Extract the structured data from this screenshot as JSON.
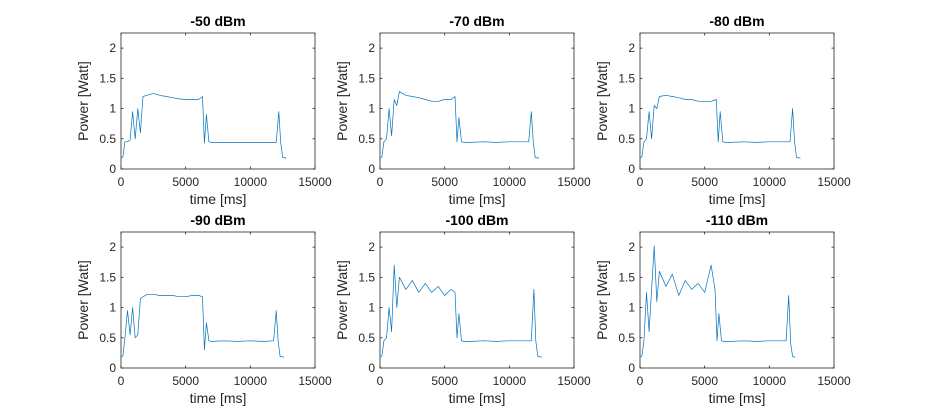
{
  "colors": {
    "line": "#0072BD",
    "axis": "#262626"
  },
  "chart_data": [
    {
      "type": "line",
      "title": "-50 dBm",
      "xlabel": "time [ms]",
      "ylabel": "Power [Watt]",
      "xlim": [
        0,
        15000
      ],
      "ylim": [
        0,
        2.25
      ],
      "xticks": [
        0,
        5000,
        10000,
        15000
      ],
      "xticklabels": [
        "0",
        "5000",
        "10000",
        "15000"
      ],
      "yticks": [
        0,
        0.5,
        1,
        1.5,
        2
      ],
      "yticklabels": [
        "0",
        "0.5",
        "1",
        "1.5",
        "2"
      ],
      "grid": false,
      "x": [
        0,
        150,
        300,
        500,
        700,
        900,
        1100,
        1300,
        1500,
        1700,
        2000,
        2500,
        3000,
        3500,
        4000,
        4500,
        5000,
        5500,
        6000,
        6300,
        6450,
        6600,
        6800,
        7000,
        8000,
        9000,
        10000,
        11000,
        12000,
        12200,
        12350,
        12500,
        12800
      ],
      "y": [
        0.18,
        0.2,
        0.45,
        0.45,
        0.48,
        0.95,
        0.5,
        1.0,
        0.6,
        1.2,
        1.22,
        1.25,
        1.22,
        1.2,
        1.18,
        1.16,
        1.15,
        1.15,
        1.15,
        1.2,
        0.43,
        0.9,
        0.45,
        0.44,
        0.44,
        0.44,
        0.44,
        0.44,
        0.44,
        0.95,
        0.44,
        0.19,
        0.18
      ]
    },
    {
      "type": "line",
      "title": "-70 dBm",
      "xlabel": "time [ms]",
      "ylabel": "Power [Watt]",
      "xlim": [
        0,
        15000
      ],
      "ylim": [
        0,
        2.25
      ],
      "xticks": [
        0,
        5000,
        10000,
        15000
      ],
      "xticklabels": [
        "0",
        "5000",
        "10000",
        "15000"
      ],
      "yticks": [
        0,
        0.5,
        1,
        1.5,
        2
      ],
      "yticklabels": [
        "0",
        "0.5",
        "1",
        "1.5",
        "2"
      ],
      "grid": false,
      "x": [
        0,
        150,
        300,
        500,
        700,
        900,
        1100,
        1300,
        1500,
        2000,
        2500,
        3000,
        3500,
        4000,
        4500,
        5000,
        5500,
        5800,
        5950,
        6100,
        6300,
        6500,
        7000,
        8000,
        9000,
        10000,
        11000,
        11500,
        11700,
        11850,
        12000,
        12300
      ],
      "y": [
        0.18,
        0.2,
        0.45,
        0.5,
        1.0,
        0.55,
        1.15,
        1.05,
        1.28,
        1.22,
        1.2,
        1.18,
        1.15,
        1.12,
        1.12,
        1.15,
        1.15,
        1.2,
        0.45,
        0.85,
        0.45,
        0.44,
        0.44,
        0.45,
        0.44,
        0.45,
        0.45,
        0.45,
        0.95,
        0.44,
        0.19,
        0.18
      ]
    },
    {
      "type": "line",
      "title": "-80 dBm",
      "xlabel": "time [ms]",
      "ylabel": "Power [Watt]",
      "xlim": [
        0,
        15000
      ],
      "ylim": [
        0,
        2.25
      ],
      "xticks": [
        0,
        5000,
        10000,
        15000
      ],
      "xticklabels": [
        "0",
        "5000",
        "10000",
        "15000"
      ],
      "yticks": [
        0,
        0.5,
        1,
        1.5,
        2
      ],
      "yticklabels": [
        "0",
        "0.5",
        "1",
        "1.5",
        "2"
      ],
      "grid": false,
      "x": [
        0,
        150,
        300,
        500,
        700,
        900,
        1100,
        1300,
        1500,
        2000,
        2500,
        3000,
        3500,
        4000,
        4500,
        5000,
        5500,
        5900,
        6050,
        6200,
        6400,
        6600,
        7000,
        8000,
        9000,
        10000,
        11000,
        11600,
        11800,
        11950,
        12100,
        12400
      ],
      "y": [
        0.18,
        0.2,
        0.45,
        0.5,
        0.95,
        0.5,
        1.05,
        1.0,
        1.2,
        1.22,
        1.2,
        1.18,
        1.15,
        1.15,
        1.12,
        1.12,
        1.12,
        1.15,
        0.45,
        0.95,
        0.45,
        0.44,
        0.44,
        0.45,
        0.44,
        0.45,
        0.45,
        0.45,
        1.0,
        0.45,
        0.19,
        0.18
      ]
    },
    {
      "type": "line",
      "title": "-90 dBm",
      "xlabel": "time [ms]",
      "ylabel": "Power [Watt]",
      "xlim": [
        0,
        15000
      ],
      "ylim": [
        0,
        2.25
      ],
      "xticks": [
        0,
        5000,
        10000,
        15000
      ],
      "xticklabels": [
        "0",
        "5000",
        "10000",
        "15000"
      ],
      "yticks": [
        0,
        0.5,
        1,
        1.5,
        2
      ],
      "yticklabels": [
        "0",
        "0.5",
        "1",
        "1.5",
        "2"
      ],
      "grid": false,
      "x": [
        0,
        150,
        300,
        500,
        700,
        900,
        1100,
        1300,
        1500,
        2000,
        2500,
        3000,
        3500,
        4000,
        4500,
        5000,
        5500,
        6000,
        6300,
        6450,
        6600,
        6800,
        7000,
        8000,
        9000,
        10000,
        11000,
        11800,
        12000,
        12150,
        12300,
        12600
      ],
      "y": [
        0.18,
        0.2,
        0.5,
        0.95,
        0.55,
        1.0,
        0.5,
        0.55,
        1.15,
        1.22,
        1.22,
        1.2,
        1.2,
        1.2,
        1.18,
        1.18,
        1.2,
        1.2,
        1.18,
        0.3,
        0.75,
        0.45,
        0.44,
        0.45,
        0.44,
        0.45,
        0.44,
        0.45,
        0.95,
        0.45,
        0.19,
        0.18
      ]
    },
    {
      "type": "line",
      "title": "-100 dBm",
      "xlabel": "time [ms]",
      "ylabel": "Power [Watt]",
      "xlim": [
        0,
        15000
      ],
      "ylim": [
        0,
        2.25
      ],
      "xticks": [
        0,
        5000,
        10000,
        15000
      ],
      "xticklabels": [
        "0",
        "5000",
        "10000",
        "15000"
      ],
      "yticks": [
        0,
        0.5,
        1,
        1.5,
        2
      ],
      "yticklabels": [
        "0",
        "0.5",
        "1",
        "1.5",
        "2"
      ],
      "grid": false,
      "x": [
        0,
        150,
        300,
        500,
        700,
        900,
        1100,
        1300,
        1500,
        2000,
        2500,
        3000,
        3500,
        4000,
        4500,
        5000,
        5500,
        5800,
        5950,
        6100,
        6300,
        6500,
        7000,
        8000,
        9000,
        10000,
        11000,
        11700,
        11900,
        12050,
        12200,
        12500
      ],
      "y": [
        0.18,
        0.2,
        0.45,
        0.5,
        1.0,
        0.6,
        1.7,
        1.0,
        1.5,
        1.3,
        1.45,
        1.25,
        1.4,
        1.25,
        1.35,
        1.2,
        1.3,
        1.25,
        0.5,
        0.9,
        0.45,
        0.44,
        0.44,
        0.45,
        0.44,
        0.45,
        0.45,
        0.45,
        1.3,
        0.45,
        0.19,
        0.18
      ]
    },
    {
      "type": "line",
      "title": "-110 dBm",
      "xlabel": "time [ms]",
      "ylabel": "Power [Watt]",
      "xlim": [
        0,
        15000
      ],
      "ylim": [
        0,
        2.25
      ],
      "xticks": [
        0,
        5000,
        10000,
        15000
      ],
      "xticklabels": [
        "0",
        "5000",
        "10000",
        "15000"
      ],
      "yticks": [
        0,
        0.5,
        1,
        1.5,
        2
      ],
      "yticklabels": [
        "0",
        "0.5",
        "1",
        "1.5",
        "2"
      ],
      "grid": false,
      "x": [
        0,
        150,
        300,
        500,
        700,
        900,
        1100,
        1300,
        1500,
        2000,
        2500,
        3000,
        3500,
        4000,
        4500,
        5000,
        5500,
        5800,
        5950,
        6100,
        6300,
        6500,
        7000,
        8000,
        9000,
        10000,
        11000,
        11300,
        11500,
        11650,
        11800,
        12000
      ],
      "y": [
        0.18,
        0.2,
        0.45,
        1.25,
        0.6,
        1.3,
        2.02,
        1.1,
        1.6,
        1.35,
        1.55,
        1.2,
        1.45,
        1.3,
        1.4,
        1.25,
        1.7,
        1.3,
        0.45,
        0.9,
        0.45,
        0.44,
        0.44,
        0.45,
        0.44,
        0.45,
        0.45,
        0.45,
        1.2,
        0.4,
        0.19,
        0.18
      ]
    }
  ]
}
